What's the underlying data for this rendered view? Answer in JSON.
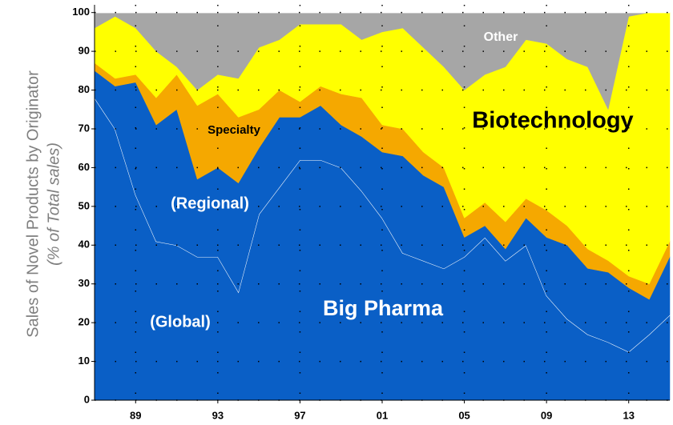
{
  "chart_data": {
    "type": "stacked_area",
    "y_label_lines": [
      "Sales of Novel Products by Originator",
      "(% of Total sales)"
    ],
    "annotations": [
      "Other",
      "Biotechnology",
      "Specialty",
      "(Regional)",
      "(Global)",
      "Big Pharma"
    ],
    "x": [
      1987,
      1988,
      1989,
      1990,
      1991,
      1992,
      1993,
      1994,
      1995,
      1996,
      1997,
      1998,
      1999,
      2000,
      2001,
      2002,
      2003,
      2004,
      2005,
      2006,
      2007,
      2008,
      2009,
      2010,
      2011,
      2012,
      2013,
      2014,
      2015
    ],
    "series": [
      {
        "name": "(Global)",
        "color": "#0a5fc6",
        "values": [
          78,
          70,
          53,
          41,
          40,
          37,
          37,
          28,
          48,
          55,
          62,
          62,
          60,
          54,
          47,
          38,
          36,
          34,
          37,
          42,
          36,
          40,
          27,
          21,
          17,
          15,
          12.5,
          17,
          22
        ]
      },
      {
        "name": "(Regional)",
        "color": "#0a5fc6",
        "values": [
          7,
          11,
          29,
          30,
          35,
          20,
          23,
          28,
          17,
          18,
          11,
          14,
          11,
          14,
          17,
          25,
          22,
          21,
          5,
          3,
          3,
          7,
          15,
          19,
          17,
          18,
          16.5,
          9,
          15
        ]
      },
      {
        "name": "Specialty",
        "color": "#f5a800",
        "values": [
          2,
          2,
          2,
          7,
          9,
          19,
          19,
          17,
          10,
          7,
          4,
          5,
          8,
          10,
          7,
          7,
          6,
          5,
          5,
          6,
          7,
          5,
          7,
          5,
          5,
          3,
          3,
          4,
          4
        ]
      },
      {
        "name": "Biotechnology",
        "color": "#ffff00",
        "values": [
          9,
          16,
          12,
          12,
          2,
          4,
          5,
          10,
          16,
          13,
          20,
          16,
          18,
          15,
          24,
          26,
          27,
          26,
          33,
          33,
          40,
          41,
          43,
          43,
          47,
          39,
          67,
          70,
          59
        ]
      },
      {
        "name": "Other",
        "color": "#a6a6a6",
        "values": [
          4,
          1,
          4,
          10,
          14,
          20,
          16,
          17,
          9,
          7,
          3,
          3,
          3,
          7,
          5,
          4,
          9,
          14,
          20,
          16,
          14,
          7,
          8,
          12,
          14,
          25,
          1,
          0,
          0
        ]
      }
    ],
    "xlim": [
      1987,
      2015
    ],
    "xticks": [
      {
        "value": 1989,
        "label": "89"
      },
      {
        "value": 1993,
        "label": "93"
      },
      {
        "value": 1997,
        "label": "97"
      },
      {
        "value": 2001,
        "label": "01"
      },
      {
        "value": 2005,
        "label": "05"
      },
      {
        "value": 2009,
        "label": "09"
      },
      {
        "value": 2013,
        "label": "13"
      }
    ],
    "ylim": [
      0,
      102
    ],
    "yticks": [
      0,
      10,
      20,
      30,
      40,
      50,
      60,
      70,
      80,
      90,
      100
    ],
    "grid": true
  }
}
